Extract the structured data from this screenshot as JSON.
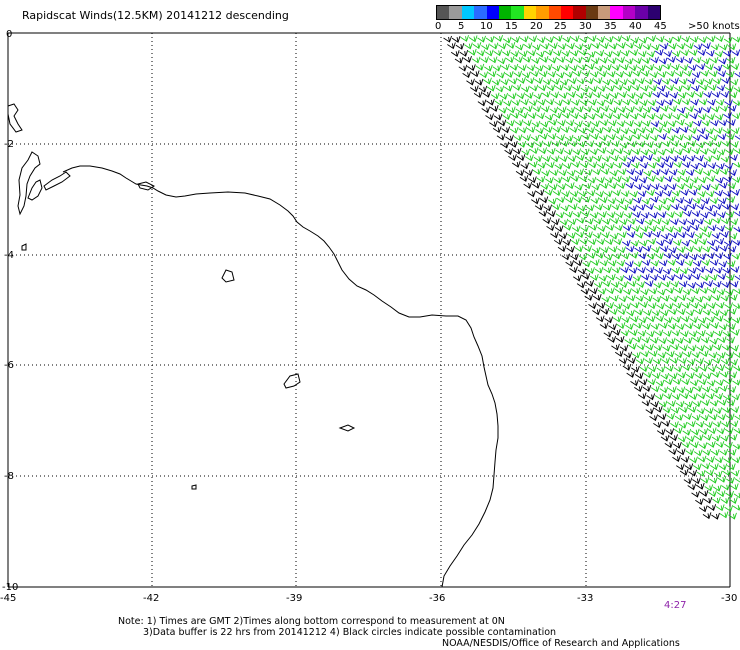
{
  "title": "Rapidscat Winds(12.5KM) 20141212 descending",
  "legend": {
    "colors": [
      "#555555",
      "#9a9a9a",
      "#00c8ff",
      "#2a6cff",
      "#0000ff",
      "#00b400",
      "#22e622",
      "#ffd400",
      "#ff9c00",
      "#ff4a00",
      "#ff0000",
      "#b00000",
      "#6a3a12",
      "#c89a7a",
      "#ff00ff",
      "#b400c8",
      "#6a00a8",
      "#2c0070"
    ],
    "ticks": [
      "0",
      "5",
      "10",
      "15",
      "20",
      "25",
      "30",
      "35",
      "40",
      "45"
    ],
    "max_label": ">50 knots"
  },
  "axes": {
    "x_ticks": [
      "-45",
      "-42",
      "-39",
      "-36",
      "-33",
      "-30"
    ],
    "y_ticks": [
      "0",
      "-2",
      "-4",
      "-6",
      "-8",
      "-10"
    ]
  },
  "notes": {
    "line1": "Note: 1) Times are GMT 2)Times along bottom correspond to measurement at 0N",
    "line2": "3)Data buffer is 22 hrs from 20141212 4) Black circles indicate possible contamination",
    "line3": "NOAA/NESDIS/Office of Research and Applications"
  },
  "time_label": "4:27",
  "colors": {
    "wind_green": "#22cc22",
    "wind_blue": "#1010c0",
    "wind_black": "#000000",
    "grid": "#000000"
  }
}
